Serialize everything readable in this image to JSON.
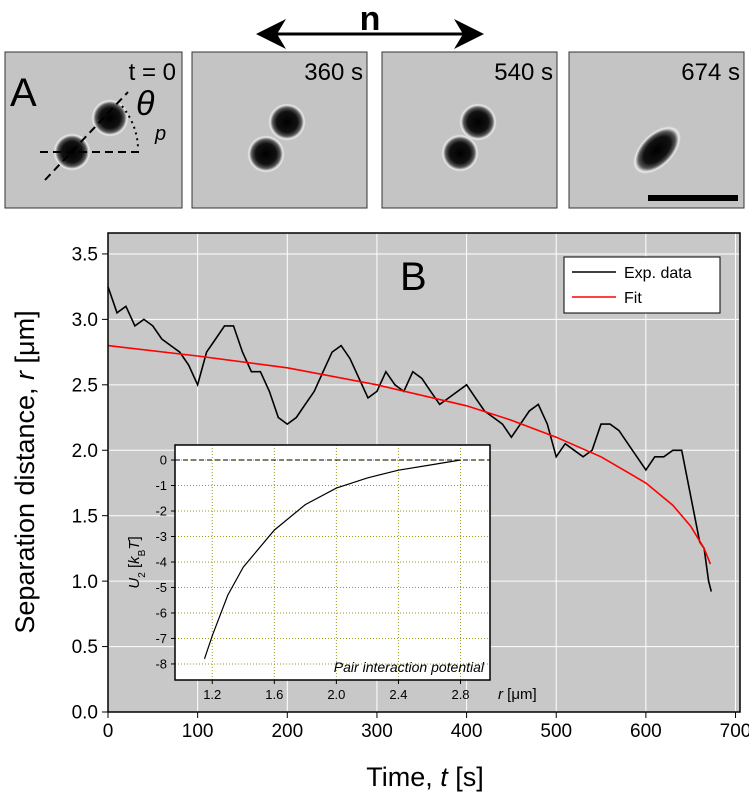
{
  "panel_a": {
    "label": "A",
    "director": "n",
    "angle_symbol": "θ",
    "angle_subscript": "p",
    "frames": [
      "t = 0",
      "360 s",
      "540 s",
      "674 s"
    ]
  },
  "chart_data": [
    {
      "type": "line",
      "panel": "B",
      "x_label": [
        "Time, ",
        "t",
        " [s]"
      ],
      "y_label": [
        "Separation distance, ",
        "r",
        " [μm]"
      ],
      "xlim": [
        0,
        705
      ],
      "ylim": [
        0,
        3.66
      ],
      "xticks": [
        0,
        100,
        200,
        300,
        400,
        500,
        600,
        700
      ],
      "yticks": [
        {
          "value": 0,
          "label": "0.0"
        },
        0.5,
        {
          "value": 1,
          "label": "1.0"
        },
        1.5,
        {
          "value": 2,
          "label": "2.0"
        },
        2.5,
        {
          "value": 3,
          "label": "3.0"
        },
        3.5
      ],
      "grid": true,
      "legend": "upper right",
      "series": [
        {
          "name": "Exp. data",
          "color": "#000000",
          "x": [
            0,
            10,
            20,
            30,
            40,
            50,
            60,
            70,
            80,
            90,
            100,
            110,
            120,
            130,
            140,
            150,
            160,
            170,
            180,
            190,
            200,
            210,
            220,
            230,
            240,
            250,
            260,
            270,
            280,
            290,
            300,
            310,
            320,
            330,
            340,
            350,
            360,
            370,
            380,
            390,
            400,
            410,
            420,
            430,
            440,
            450,
            460,
            470,
            480,
            490,
            500,
            510,
            520,
            530,
            540,
            550,
            560,
            570,
            580,
            590,
            600,
            610,
            620,
            630,
            640,
            650,
            660,
            665,
            670,
            673
          ],
          "values": [
            3.25,
            3.05,
            3.1,
            2.95,
            3.0,
            2.95,
            2.85,
            2.8,
            2.75,
            2.65,
            2.5,
            2.75,
            2.85,
            2.95,
            2.95,
            2.75,
            2.6,
            2.6,
            2.45,
            2.25,
            2.2,
            2.25,
            2.35,
            2.45,
            2.6,
            2.75,
            2.8,
            2.7,
            2.55,
            2.4,
            2.45,
            2.6,
            2.5,
            2.45,
            2.6,
            2.55,
            2.45,
            2.35,
            2.4,
            2.45,
            2.5,
            2.4,
            2.3,
            2.25,
            2.2,
            2.1,
            2.2,
            2.3,
            2.35,
            2.2,
            1.95,
            2.05,
            2.0,
            1.95,
            2.0,
            2.2,
            2.2,
            2.15,
            2.05,
            1.95,
            1.85,
            1.95,
            1.95,
            2.0,
            2.0,
            1.65,
            1.3,
            1.25,
            1.0,
            0.92
          ]
        },
        {
          "name": "Fit",
          "color": "#ff0000",
          "x": [
            0,
            100,
            200,
            300,
            400,
            450,
            500,
            550,
            600,
            630,
            650,
            665,
            672
          ],
          "values": [
            2.8,
            2.72,
            2.63,
            2.5,
            2.34,
            2.23,
            2.1,
            1.95,
            1.75,
            1.58,
            1.42,
            1.25,
            1.13
          ]
        }
      ]
    },
    {
      "type": "line",
      "x_label": [
        "r",
        " [μm]"
      ],
      "y_label": [
        "U",
        "2",
        " [",
        "k",
        "B",
        "T",
        "]"
      ],
      "annotation": "Pair interaction potential",
      "xlim": [
        0.96,
        2.99
      ],
      "ylim": [
        -8.63,
        0.59
      ],
      "xticks": [
        1.2,
        1.6,
        {
          "value": 2,
          "label": "2.0"
        },
        2.4,
        2.8
      ],
      "yticks": [
        0,
        -1,
        -2,
        -3,
        -4,
        -5,
        -6,
        -7,
        -8
      ],
      "grid": true,
      "zero_line": true,
      "series": [
        {
          "color": "#000000",
          "x": [
            1.15,
            1.2,
            1.3,
            1.4,
            1.6,
            1.8,
            2.0,
            2.2,
            2.4,
            2.6,
            2.8
          ],
          "values": [
            -7.8,
            -6.9,
            -5.3,
            -4.2,
            -2.75,
            -1.75,
            -1.1,
            -0.7,
            -0.4,
            -0.2,
            0
          ]
        }
      ]
    }
  ]
}
